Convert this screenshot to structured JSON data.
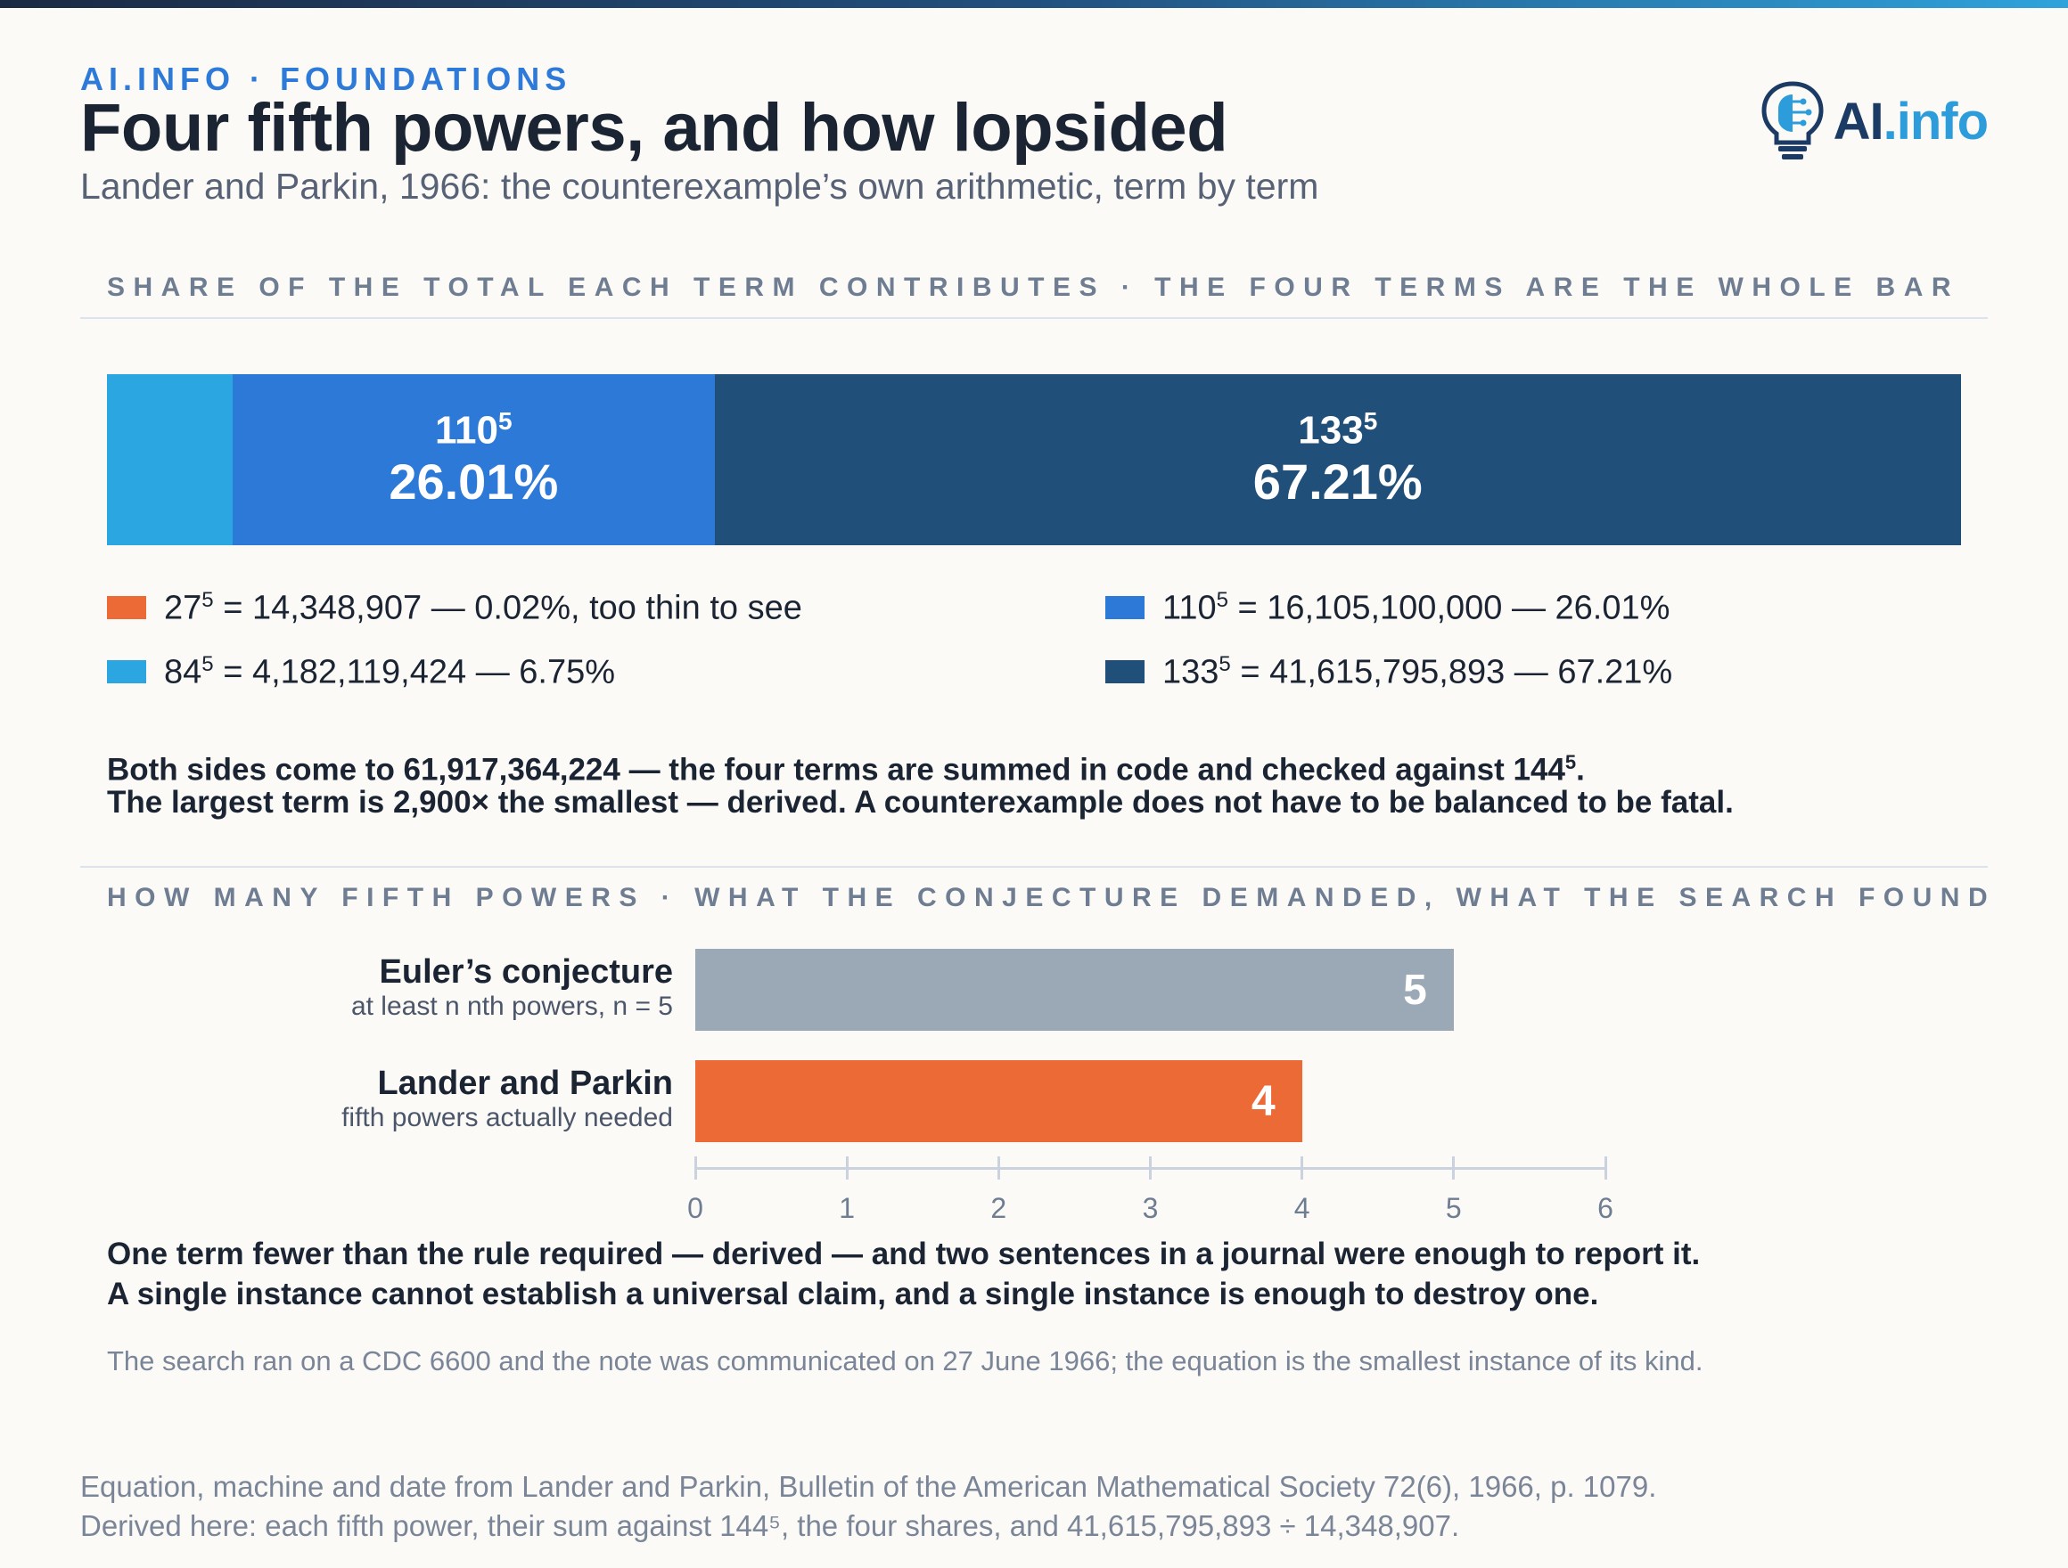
{
  "header": {
    "kicker": "AI.INFO · FOUNDATIONS",
    "title": "Four fifth powers, and how lopsided",
    "subtitle": "Lander and Parkin, 1966: the counterexample’s own arithmetic, term by term"
  },
  "logo": {
    "brand_ai": "AI",
    "brand_info": ".info",
    "icon": "lightbulb-brain-icon"
  },
  "colors": {
    "term_27": "#eb6a36",
    "term_84": "#2ca6e0",
    "term_110": "#2c79d8",
    "term_133": "#204f7a",
    "euler_bar": "#9ba8b6",
    "lander_bar": "#eb6a36"
  },
  "section1": {
    "label": "SHARE OF THE TOTAL EACH TERM CONTRIBUTES · THE FOUR TERMS ARE THE WHOLE BAR"
  },
  "section2": {
    "label": "HOW MANY FIFTH POWERS · WHAT THE CONJECTURE DEMANDED, WHAT THE SEARCH FOUND"
  },
  "chart_data": [
    {
      "type": "bar",
      "orientation": "horizontal-stacked",
      "series": [
        {
          "base": "27",
          "exp": "5",
          "value": 14348907,
          "value_text": "14,348,907",
          "share": 0.02,
          "share_text": "0.02%",
          "note": "too thin to see",
          "color": "#eb6a36",
          "legend": "27⁵ = 14,348,907 — 0.02%, too thin to see"
        },
        {
          "base": "84",
          "exp": "5",
          "value": 4182119424,
          "value_text": "4,182,119,424",
          "share": 6.75,
          "share_text": "6.75%",
          "color": "#2ca6e0",
          "legend": "84⁵ = 4,182,119,424 — 6.75%"
        },
        {
          "base": "110",
          "exp": "5",
          "value": 16105100000,
          "value_text": "16,105,100,000",
          "share": 26.01,
          "share_text": "26.01%",
          "color": "#2c79d8",
          "legend": "110⁵ = 16,105,100,000 — 26.01%"
        },
        {
          "base": "133",
          "exp": "5",
          "value": 41615795893,
          "value_text": "41,615,795,893",
          "share": 67.21,
          "share_text": "67.21%",
          "color": "#204f7a",
          "legend": "133⁵ = 41,615,795,893 — 67.21%"
        }
      ],
      "legend_position": "bottom"
    },
    {
      "type": "bar",
      "orientation": "horizontal",
      "categories": [
        {
          "label": "Euler’s conjecture",
          "sublabel": "at least n nth powers, n = 5",
          "value": 5,
          "value_text": "5",
          "color": "#9ba8b6"
        },
        {
          "label": "Lander and Parkin",
          "sublabel": "fifth powers actually needed",
          "value": 4,
          "value_text": "4",
          "color": "#eb6a36"
        }
      ],
      "xlim": [
        0,
        6
      ],
      "xticks": [
        "0",
        "1",
        "2",
        "3",
        "4",
        "5",
        "6"
      ],
      "grid": false
    }
  ],
  "notes": {
    "sum_line1_pre": "Both sides come to 61,917,364,224 — the four terms are summed in code and checked against 144",
    "sum_line1_exp": "5",
    "sum_line1_post": ".",
    "sum_line2": "The largest term is 2,900× the smallest — derived. A counterexample does not have to be balanced to be fatal.",
    "count_line1": "One term fewer than the rule required — derived — and two sentences in a journal were enough to report it.",
    "count_line2": "A single instance cannot establish a universal claim, and a single instance is enough to destroy one.",
    "machine": "The search ran on a CDC 6600 and the note was communicated on 27 June 1966; the equation is the smallest instance of its kind."
  },
  "source": {
    "line1": "Equation, machine and date from Lander and Parkin, Bulletin of the American Mathematical Society 72(6), 1966, p. 1079.",
    "line2": "Derived here: each fifth power, their sum against 144⁵, the four shares, and 41,615,795,893 ÷ 14,348,907."
  }
}
